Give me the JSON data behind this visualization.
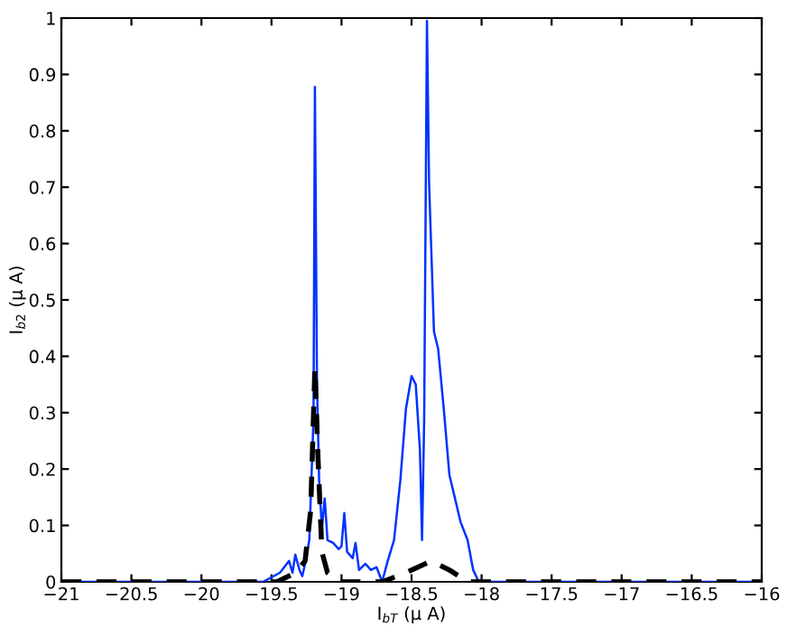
{
  "chart_data": {
    "type": "line",
    "xlabel": "I$_{bT}$ (μ A)",
    "ylabel": "I$_{b2}$ (μ A)",
    "xlim": [
      -21,
      -16
    ],
    "ylim": [
      0,
      1
    ],
    "xticks": [
      {
        "value": -21,
        "label": "−21"
      },
      {
        "value": -20.5,
        "label": "−20.5"
      },
      {
        "value": -20,
        "label": "−20"
      },
      {
        "value": -19.5,
        "label": "−19.5"
      },
      {
        "value": -19,
        "label": "−19"
      },
      {
        "value": -18.5,
        "label": "−18.5"
      },
      {
        "value": -18,
        "label": "−18"
      },
      {
        "value": -17.5,
        "label": "−17.5"
      },
      {
        "value": -17,
        "label": "−17"
      },
      {
        "value": -16.5,
        "label": "−16.5"
      },
      {
        "value": -16,
        "label": "−16"
      }
    ],
    "yticks": [
      0,
      0.1,
      0.2,
      0.3,
      0.4,
      0.5,
      0.6,
      0.7,
      0.8,
      0.9,
      1
    ],
    "grid": false,
    "legend": false,
    "marker": "none",
    "series": [
      {
        "color": "#0033ff",
        "line_style": "solid",
        "x": [
          -21,
          -19.56,
          -19.44,
          -19.375,
          -19.35,
          -19.33,
          -19.3,
          -19.28,
          -19.26,
          -19.23,
          -19.2,
          -19.19,
          -19.175,
          -19.16,
          -19.14,
          -19.12,
          -19.1,
          -19.06,
          -19.02,
          -19.0,
          -18.98,
          -18.96,
          -18.92,
          -18.9,
          -18.875,
          -18.83,
          -18.79,
          -18.75,
          -18.71,
          -18.67,
          -18.625,
          -18.58,
          -18.54,
          -18.5,
          -18.47,
          -18.44,
          -18.425,
          -18.41,
          -18.39,
          -18.375,
          -18.34,
          -18.31,
          -18.27,
          -18.23,
          -18.19,
          -18.15,
          -18.1,
          -18.06,
          -18.02,
          -16
        ],
        "values": [
          0,
          0,
          0.016,
          0.037,
          0.016,
          0.048,
          0.021,
          0.01,
          0.032,
          0.074,
          0.29,
          0.878,
          0.35,
          0.18,
          0.095,
          0.148,
          0.074,
          0.069,
          0.058,
          0.063,
          0.122,
          0.053,
          0.042,
          0.069,
          0.021,
          0.032,
          0.021,
          0.026,
          0,
          0.037,
          0.074,
          0.18,
          0.307,
          0.365,
          0.35,
          0.233,
          0.074,
          0.286,
          0.995,
          0.709,
          0.444,
          0.413,
          0.307,
          0.19,
          0.148,
          0.106,
          0.074,
          0.021,
          0,
          0
        ]
      },
      {
        "color": "#000000",
        "line_style": "dashed",
        "x": [
          -21,
          -19.46,
          -19.33,
          -19.26,
          -19.22,
          -19.19,
          -19.17,
          -19.14,
          -19.1,
          -19.02,
          -18.71,
          -18.54,
          -18.36,
          -18.23,
          -18.1,
          -16
        ],
        "values": [
          0,
          0,
          0.016,
          0.037,
          0.127,
          0.38,
          0.233,
          0.053,
          0.016,
          0,
          0,
          0.016,
          0.037,
          0.021,
          0,
          0
        ]
      }
    ]
  }
}
